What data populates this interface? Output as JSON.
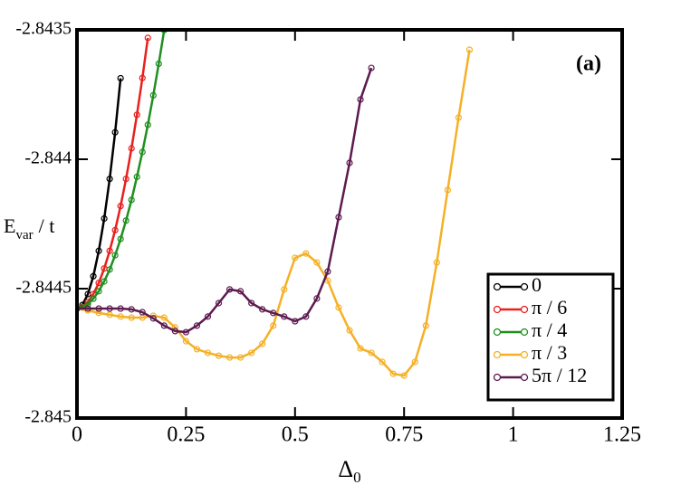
{
  "chart_data": {
    "type": "line",
    "annotation": "(a)",
    "xlabel": {
      "main": "Δ",
      "sub": "0"
    },
    "ylabel": {
      "main": "E",
      "sub": "var",
      "rest": "/ t"
    },
    "xlim": [
      0,
      1.25
    ],
    "ylim": [
      -2.845,
      -2.8435
    ],
    "xticks": [
      0,
      0.25,
      0.5,
      0.75,
      1,
      1.25
    ],
    "yticks": [
      -2.845,
      -2.8445,
      -2.844,
      -2.8435
    ],
    "legend": "lower right",
    "series": [
      {
        "name": "0",
        "color": "#000000",
        "x": [
          0,
          0.0125,
          0.025,
          0.0375,
          0.05,
          0.0625,
          0.075,
          0.0875,
          0.1
        ],
        "values": [
          -2.844577,
          -2.844563,
          -2.844521,
          -2.844452,
          -2.844354,
          -2.844229,
          -2.844076,
          -2.843896,
          -2.843687
        ]
      },
      {
        "name": "π / 6",
        "color": "#e8201e",
        "x": [
          0,
          0.0125,
          0.025,
          0.0375,
          0.05,
          0.0625,
          0.075,
          0.0875,
          0.1,
          0.1125,
          0.125,
          0.1375,
          0.15,
          0.1625
        ],
        "values": [
          -2.844577,
          -2.844571,
          -2.844552,
          -2.844521,
          -2.844478,
          -2.844422,
          -2.844354,
          -2.844274,
          -2.844181,
          -2.844076,
          -2.843958,
          -2.843828,
          -2.843686,
          -2.843531
        ]
      },
      {
        "name": "π / 4",
        "color": "#1f8f1f",
        "x": [
          0,
          0.0125,
          0.025,
          0.0375,
          0.05,
          0.0625,
          0.075,
          0.0875,
          0.1,
          0.1125,
          0.125,
          0.1375,
          0.15,
          0.1625,
          0.175,
          0.1875,
          0.2
        ],
        "values": [
          -2.844577,
          -2.844573,
          -2.84456,
          -2.844539,
          -2.84451,
          -2.844472,
          -2.844426,
          -2.844371,
          -2.844308,
          -2.844237,
          -2.844157,
          -2.844068,
          -2.843972,
          -2.843867,
          -2.843753,
          -2.843631,
          -2.843501
        ]
      },
      {
        "name": "π / 3",
        "color": "#f5b026",
        "x": [
          0,
          0.025,
          0.05,
          0.075,
          0.1,
          0.125,
          0.15,
          0.175,
          0.2,
          0.225,
          0.25,
          0.275,
          0.3,
          0.325,
          0.35,
          0.375,
          0.4,
          0.425,
          0.45,
          0.475,
          0.5,
          0.525,
          0.55,
          0.575,
          0.6,
          0.625,
          0.65,
          0.675,
          0.7,
          0.725,
          0.75,
          0.775,
          0.8,
          0.825,
          0.85,
          0.875,
          0.9
        ],
        "values": [
          -2.844577,
          -2.844584,
          -2.844594,
          -2.844601,
          -2.844608,
          -2.844612,
          -2.844612,
          -2.844605,
          -2.844612,
          -2.84465,
          -2.844703,
          -2.844734,
          -2.844748,
          -2.844759,
          -2.844766,
          -2.844766,
          -2.844748,
          -2.844713,
          -2.844643,
          -2.844503,
          -2.844381,
          -2.844364,
          -2.844399,
          -2.844469,
          -2.844573,
          -2.844661,
          -2.844731,
          -2.844748,
          -2.844783,
          -2.844829,
          -2.844836,
          -2.844783,
          -2.844643,
          -2.844399,
          -2.844119,
          -2.843839,
          -2.843577
        ]
      },
      {
        "name": "5π / 12",
        "color": "#5c1a4f",
        "x": [
          0,
          0.025,
          0.05,
          0.075,
          0.1,
          0.125,
          0.15,
          0.175,
          0.2,
          0.225,
          0.25,
          0.275,
          0.3,
          0.325,
          0.35,
          0.375,
          0.4,
          0.425,
          0.45,
          0.475,
          0.5,
          0.525,
          0.55,
          0.575,
          0.6,
          0.625,
          0.65,
          0.675
        ],
        "values": [
          -2.844577,
          -2.844577,
          -2.844577,
          -2.844577,
          -2.844577,
          -2.84458,
          -2.844591,
          -2.844615,
          -2.844643,
          -2.844664,
          -2.844668,
          -2.844643,
          -2.844608,
          -2.844556,
          -2.844503,
          -2.84451,
          -2.844556,
          -2.84458,
          -2.844594,
          -2.844608,
          -2.844626,
          -2.844608,
          -2.844538,
          -2.844434,
          -2.844224,
          -2.844014,
          -2.843769,
          -2.843647
        ]
      }
    ]
  }
}
